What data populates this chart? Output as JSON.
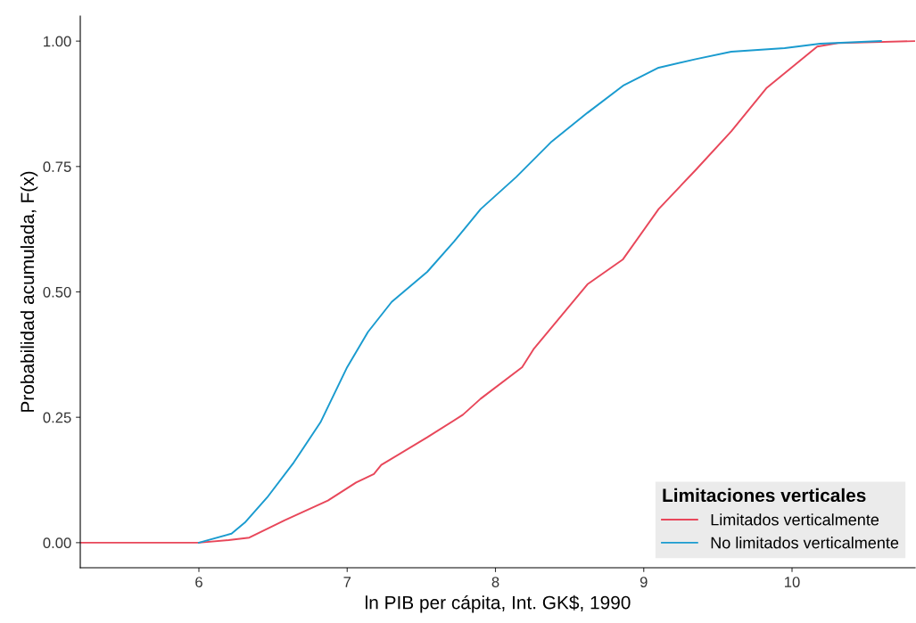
{
  "chart_data": {
    "type": "line",
    "xlabel": "ln PIB per cápita, Int. GK$, 1990",
    "ylabel": "Probabilidad acumulada, F(x)",
    "legend_title": "Limitaciones verticales",
    "legend": "bottom right",
    "grid": false,
    "xlim": [
      5.2,
      10.83
    ],
    "xticks": [
      6,
      7,
      8,
      9,
      10
    ],
    "ylim": [
      -0.05,
      1.05
    ],
    "yticks": [
      {
        "value": 0,
        "label": "0.00"
      },
      {
        "value": 0.25,
        "label": "0.25"
      },
      {
        "value": 0.5,
        "label": "0.50"
      },
      {
        "value": 0.75,
        "label": "0.75"
      },
      {
        "value": 1,
        "label": "1.00"
      }
    ],
    "series": [
      {
        "name": "Limitados verticalmente",
        "color": "#e8475a",
        "x": [
          5.2,
          6.0,
          6.2,
          6.34,
          6.58,
          6.87,
          7.06,
          7.18,
          7.23,
          7.54,
          7.78,
          7.9,
          8.18,
          8.26,
          8.62,
          8.86,
          9.1,
          9.35,
          9.59,
          9.83,
          10.17,
          10.31,
          10.83
        ],
        "values": [
          0,
          0,
          0.005,
          0.01,
          0.045,
          0.084,
          0.12,
          0.137,
          0.155,
          0.21,
          0.255,
          0.287,
          0.35,
          0.387,
          0.515,
          0.565,
          0.665,
          0.743,
          0.82,
          0.907,
          0.989,
          0.996,
          1.0
        ]
      },
      {
        "name": "No limitados verticalmente",
        "color": "#1a9bcf",
        "x": [
          6.0,
          6.22,
          6.31,
          6.46,
          6.64,
          6.82,
          7.0,
          7.14,
          7.3,
          7.54,
          7.72,
          7.9,
          8.14,
          8.38,
          8.62,
          8.86,
          9.1,
          9.35,
          9.59,
          9.95,
          10.19,
          10.6
        ],
        "values": [
          0,
          0.018,
          0.04,
          0.09,
          0.16,
          0.24,
          0.35,
          0.42,
          0.48,
          0.54,
          0.6,
          0.665,
          0.729,
          0.8,
          0.857,
          0.911,
          0.947,
          0.964,
          0.979,
          0.986,
          0.995,
          1.0
        ]
      }
    ]
  }
}
